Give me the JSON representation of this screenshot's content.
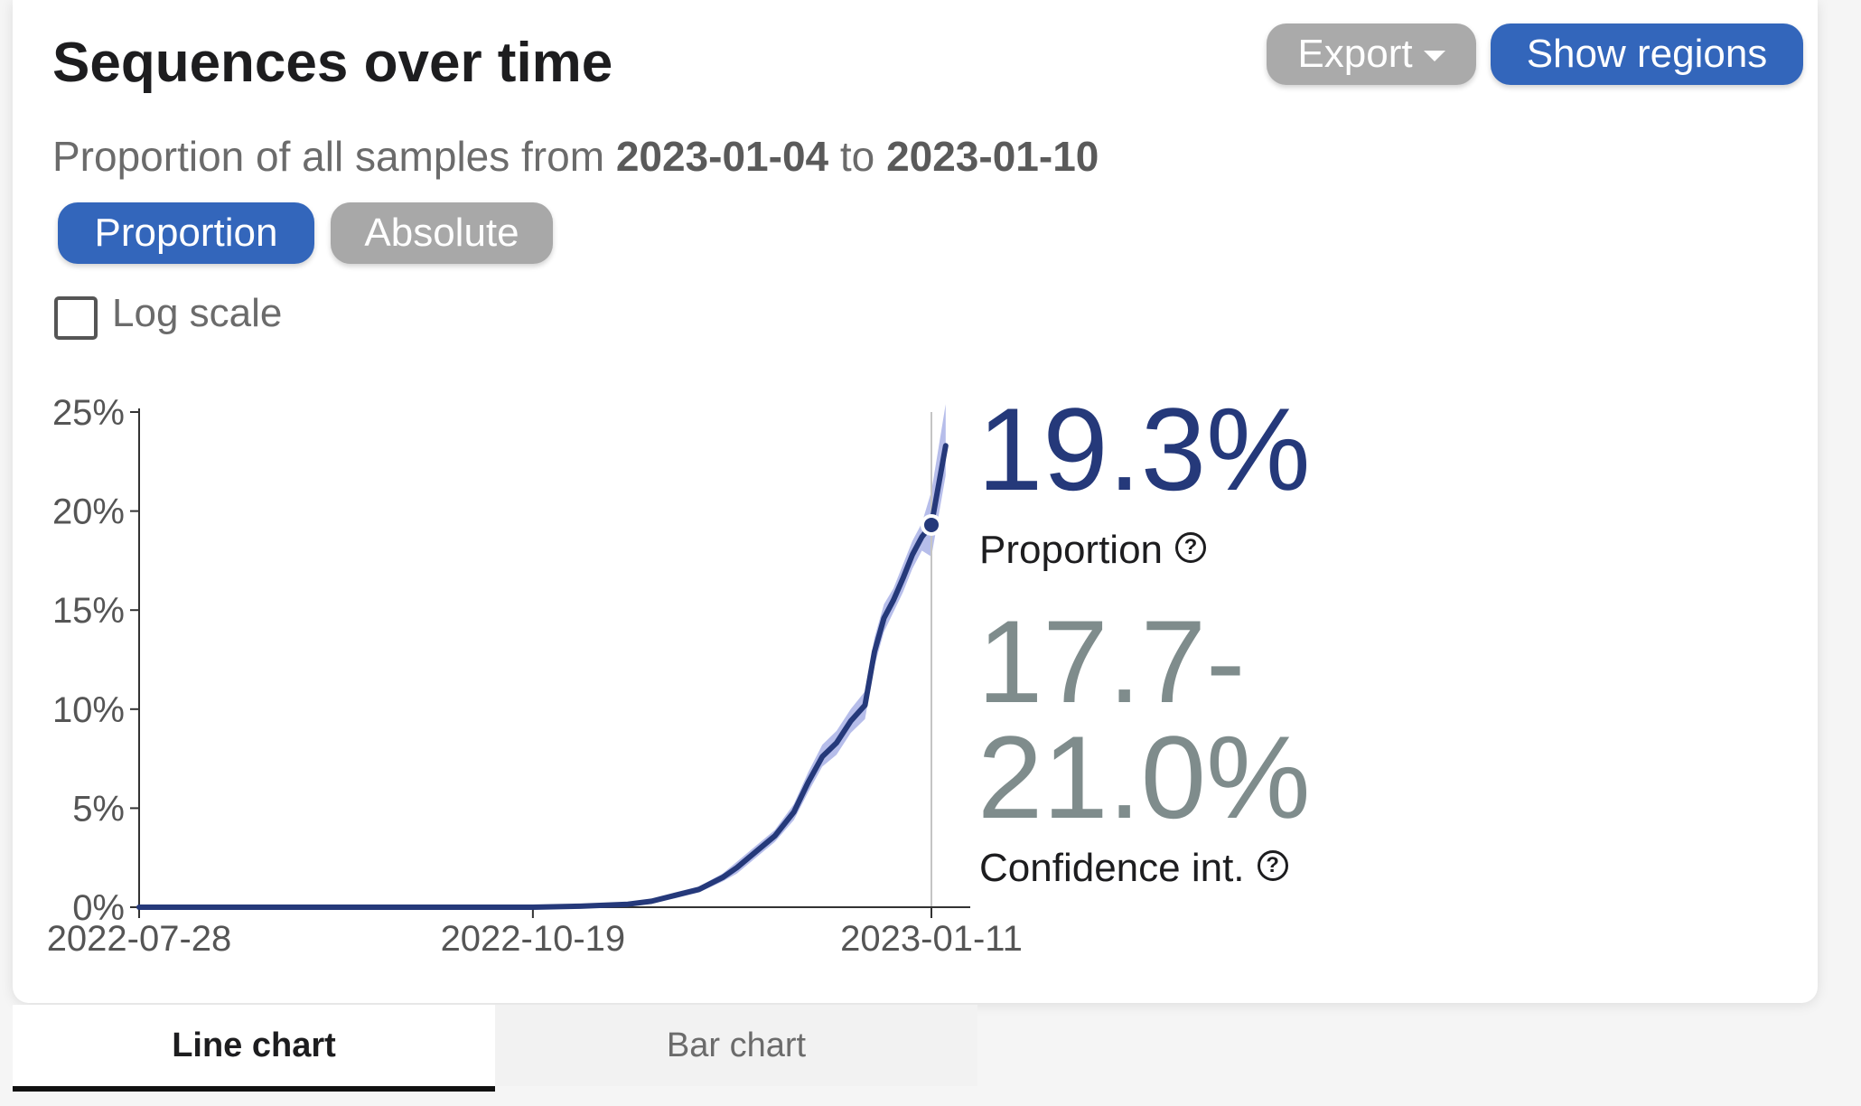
{
  "header": {
    "title": "Sequences over time",
    "subtitle_prefix": "Proportion of all samples from",
    "date_from": "2023-01-04",
    "subtitle_mid": "to",
    "date_to": "2023-01-10",
    "export_label": "Export",
    "show_regions_label": "Show regions"
  },
  "toggle": {
    "proportion_label": "Proportion",
    "absolute_label": "Absolute",
    "active": "proportion"
  },
  "log_scale": {
    "label": "Log scale",
    "checked": false
  },
  "stats": {
    "value": "19.3%",
    "value_label": "Proportion",
    "ci_low": "17.7-",
    "ci_high": "21.0%",
    "ci_label": "Confidence int."
  },
  "tabs": {
    "line_label": "Line chart",
    "bar_label": "Bar chart",
    "active": "line"
  },
  "colors": {
    "line": "#25397a",
    "band": "#a9b1e6",
    "primary_button": "#3366bb",
    "secondary_button": "#aaaaaa"
  },
  "chart_data": {
    "type": "line",
    "title": "",
    "xlabel": "",
    "ylabel": "",
    "x_ticks": [
      "2022-07-28",
      "2022-10-19",
      "2023-01-11"
    ],
    "y_ticks": [
      "0%",
      "5%",
      "10%",
      "15%",
      "20%",
      "25%"
    ],
    "ylim": [
      0,
      25
    ],
    "grid": false,
    "highlight_date": "2023-01-11",
    "highlight_value": 19.3,
    "series": [
      {
        "x": [
          "2022-07-28",
          "2022-08-28",
          "2022-09-28",
          "2022-10-19",
          "2022-10-29",
          "2022-11-08",
          "2022-11-13",
          "2022-11-18",
          "2022-11-23",
          "2022-11-28",
          "2022-12-01",
          "2022-12-05",
          "2022-12-09",
          "2022-12-13",
          "2022-12-16",
          "2022-12-19",
          "2022-12-22",
          "2022-12-25",
          "2022-12-28",
          "2022-12-30",
          "2023-01-01",
          "2023-01-03",
          "2023-01-05",
          "2023-01-07",
          "2023-01-09",
          "2023-01-11",
          "2023-01-14"
        ],
        "values": [
          0,
          0,
          0,
          0,
          0.05,
          0.15,
          0.3,
          0.6,
          0.9,
          1.5,
          2.0,
          2.8,
          3.6,
          4.8,
          6.3,
          7.6,
          8.3,
          9.4,
          10.2,
          12.9,
          14.6,
          15.5,
          16.6,
          17.8,
          18.7,
          19.3,
          23.3
        ],
        "ci_low": [
          0,
          0,
          0,
          0,
          0.03,
          0.1,
          0.22,
          0.45,
          0.75,
          1.3,
          1.7,
          2.5,
          3.3,
          4.4,
          5.8,
          7.1,
          7.7,
          8.8,
          9.5,
          12.2,
          13.9,
          14.9,
          15.9,
          17.1,
          18.0,
          17.7,
          21.8
        ],
        "ci_high": [
          0,
          0,
          0,
          0,
          0.07,
          0.2,
          0.38,
          0.75,
          1.05,
          1.7,
          2.3,
          3.1,
          3.9,
          5.2,
          6.8,
          8.2,
          8.9,
          10.0,
          10.9,
          13.6,
          15.3,
          16.1,
          17.3,
          18.5,
          19.4,
          21.0,
          25.4
        ]
      }
    ]
  }
}
